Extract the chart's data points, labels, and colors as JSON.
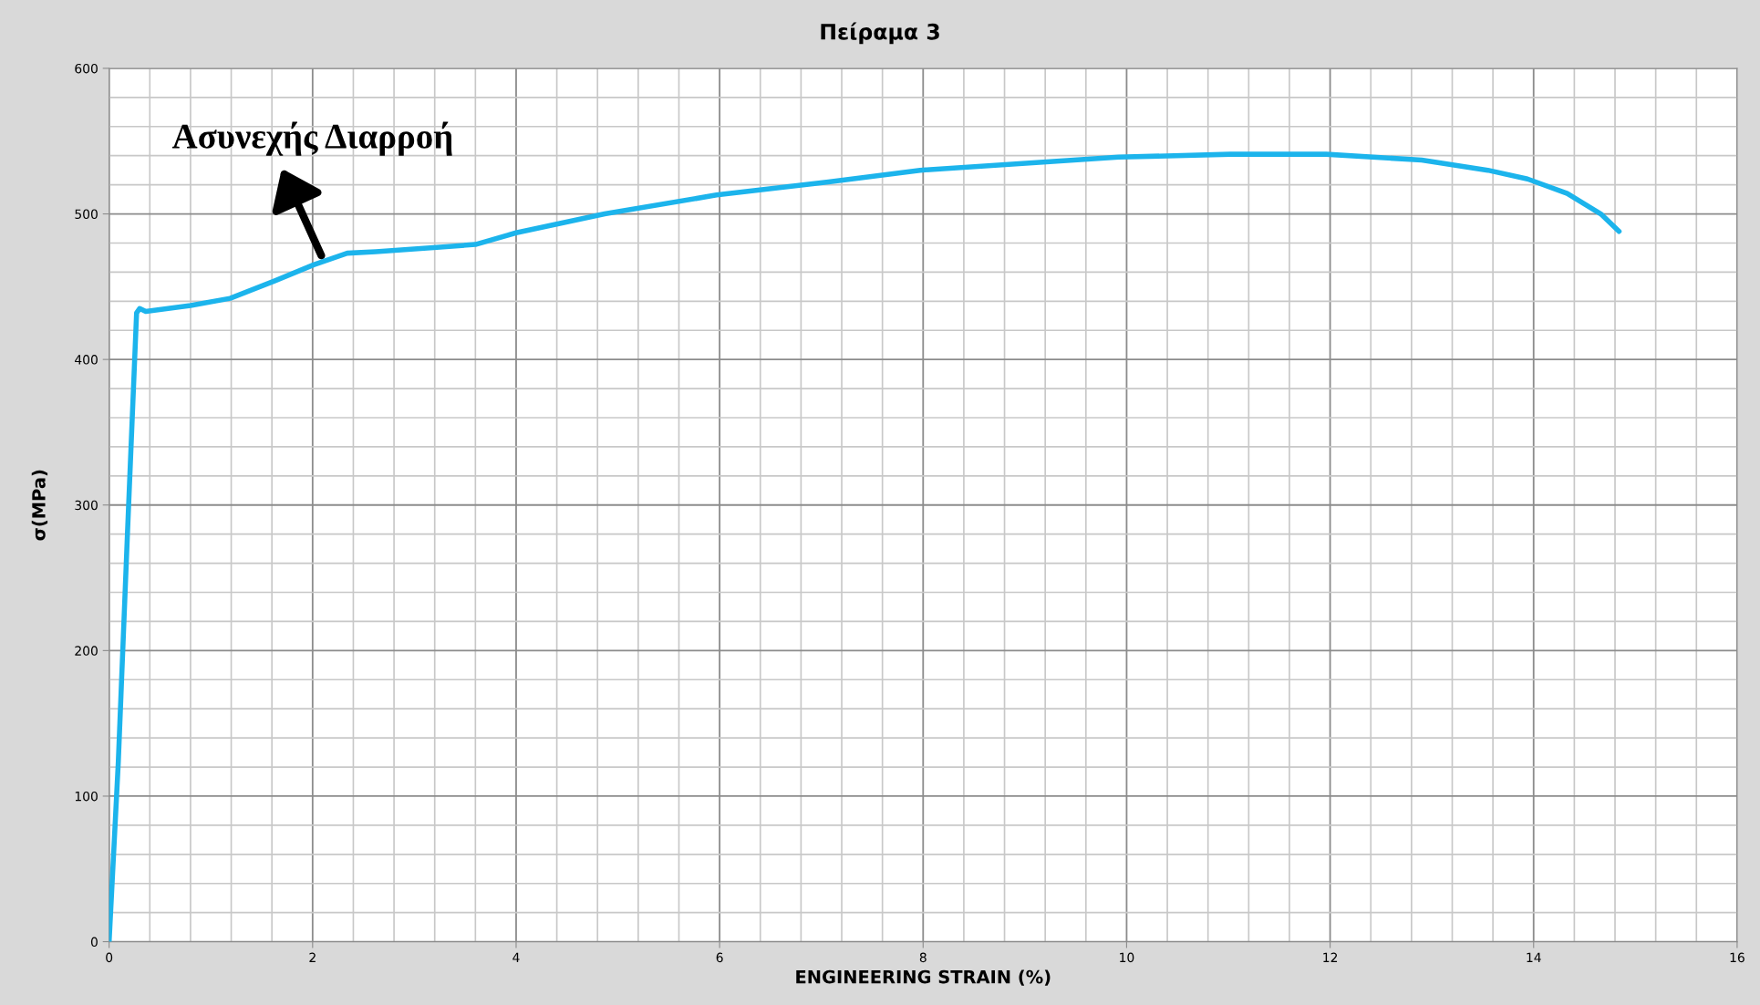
{
  "chart_data": {
    "type": "line",
    "title": "Πείραμα 3",
    "xlabel": "ENGINEERING STRAIN (%)",
    "ylabel": "σ(MPa)",
    "x": [
      0,
      0.09,
      0.18,
      0.27,
      0.3,
      0.36,
      0.8,
      1.19,
      1.63,
      2.01,
      2.34,
      2.62,
      3.22,
      3.6,
      4.0,
      4.87,
      5.97,
      7.07,
      7.97,
      9.92,
      11.02,
      11.96,
      12.9,
      13.55,
      13.94,
      14.33,
      14.66,
      14.84
    ],
    "series": [
      {
        "color": "#1cb4ec",
        "values": [
          0,
          123,
          280,
          432,
          435,
          433,
          437,
          442,
          454,
          465,
          473,
          474,
          477,
          479,
          487,
          500,
          513,
          522,
          530,
          539,
          541,
          541,
          537,
          530,
          524,
          514,
          500,
          488
        ]
      }
    ],
    "annotations": [
      "Ασυνεχής Διαρροή"
    ],
    "xlim": [
      0,
      16
    ],
    "ylim": [
      0,
      600
    ],
    "xticks": [
      0,
      2,
      4,
      6,
      8,
      10,
      12,
      14,
      16
    ],
    "yticks": [
      0,
      100,
      200,
      300,
      400,
      500,
      600
    ],
    "grid": true,
    "marker": "none",
    "line_style": "solid"
  }
}
